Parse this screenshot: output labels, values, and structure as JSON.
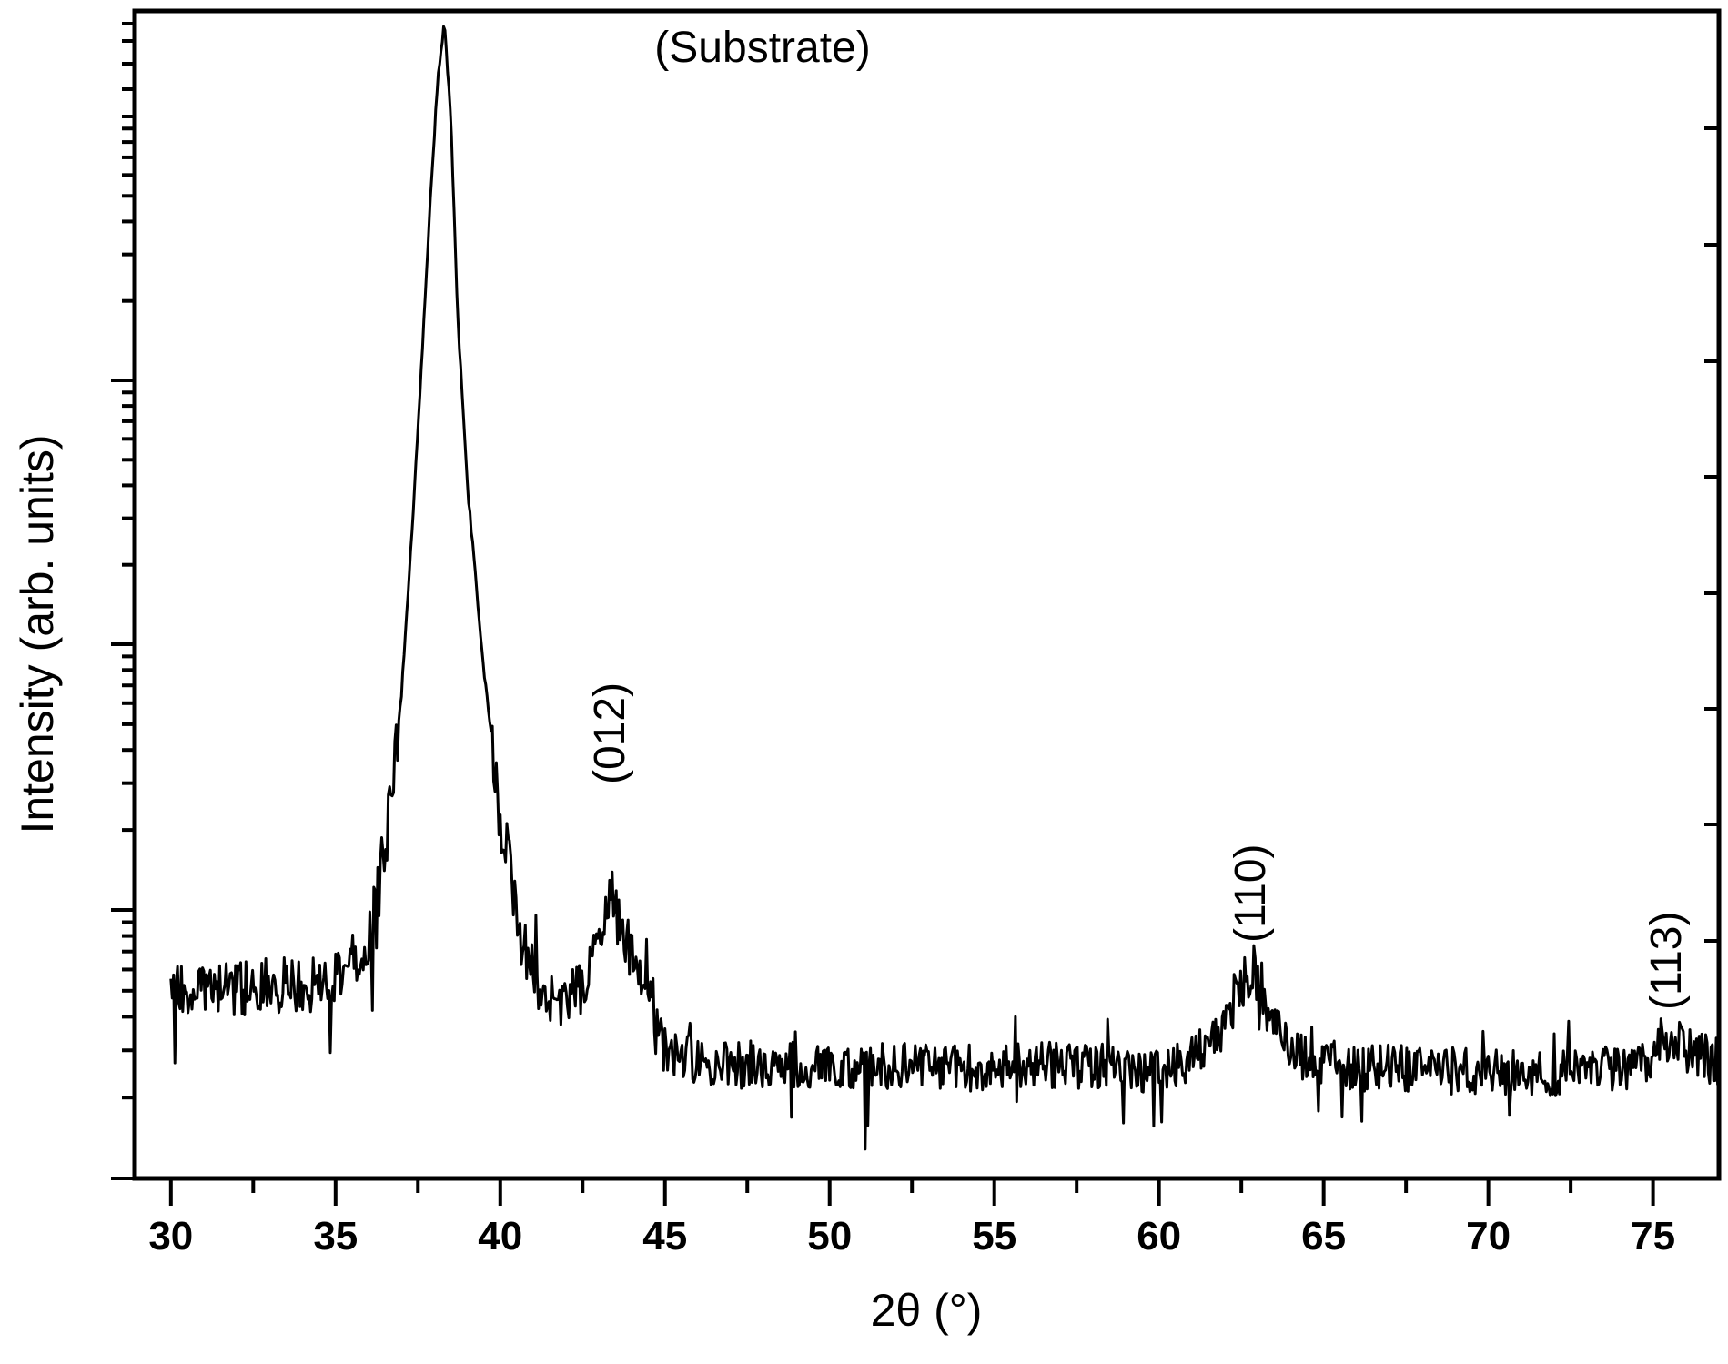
{
  "chart_data": {
    "type": "line",
    "title": "",
    "xlabel": "2θ (°)",
    "ylabel": "Intensity (arb. units)",
    "xlim": [
      28.9,
      77
    ],
    "ylim": [
      0,
      100
    ],
    "x_ticks": [
      "30",
      "35",
      "40",
      "45",
      "50",
      "55",
      "60",
      "65",
      "70",
      "75"
    ],
    "y_scale": "log",
    "y_tick_labels_shown": false,
    "grid": false,
    "legend": "none",
    "line_color": "#000000",
    "annotations": [
      {
        "text": "(Substrate)",
        "x": 38.3,
        "y": 98,
        "orientation": "horizontal"
      },
      {
        "text": "(012)",
        "x": 43.4,
        "y": 25,
        "orientation": "vertical"
      },
      {
        "text": "(110)",
        "x": 62.9,
        "y": 19,
        "orientation": "vertical"
      },
      {
        "text": "(113)",
        "x": 75.4,
        "y": 14,
        "orientation": "vertical"
      }
    ],
    "peaks": [
      {
        "x": 38.3,
        "y": 100
      },
      {
        "x": 43.4,
        "y": 24
      },
      {
        "x": 62.8,
        "y": 19
      },
      {
        "x": 75.5,
        "y": 12.5
      }
    ],
    "series": [
      {
        "x": [
          30,
          31,
          32,
          33,
          34,
          35,
          35.5,
          36,
          36.5,
          37,
          37.3,
          37.6,
          37.9,
          38.1,
          38.3,
          38.5,
          38.7,
          39,
          39.5,
          40,
          40.5,
          41,
          41.5,
          42,
          42.5,
          43,
          43.4,
          43.8,
          44.2,
          44.6,
          45,
          46,
          48,
          50,
          52,
          54,
          56,
          58,
          60,
          61,
          61.8,
          62.3,
          62.8,
          63.3,
          63.8,
          64.5,
          66,
          68,
          70,
          72,
          74,
          74.8,
          75.3,
          75.7,
          76.2,
          77
        ],
        "y": [
          16.5,
          16.5,
          16.3,
          16.8,
          16.6,
          17.5,
          19,
          21,
          28,
          42,
          55,
          70,
          86,
          95,
          100,
          92,
          75,
          60,
          44,
          32,
          22,
          17.5,
          16,
          15.5,
          16.5,
          21,
          24,
          21,
          18.5,
          16,
          11,
          10,
          9.8,
          9.6,
          9.7,
          9.6,
          9.8,
          9.6,
          9.5,
          10.5,
          12,
          15.5,
          18.5,
          15,
          11.5,
          10.2,
          9.6,
          9.4,
          9.2,
          9.2,
          9.4,
          10.5,
          12,
          12.5,
          10.5,
          10.2
        ]
      }
    ]
  }
}
